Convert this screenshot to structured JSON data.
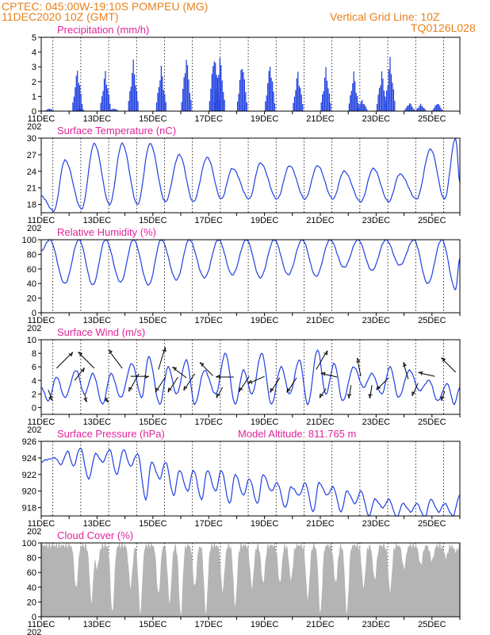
{
  "header": {
    "line1_left": "CPTEC:   045:00W-19:10S   POMPEU (MG)",
    "line2_left": "11DEC2020 10Z (GMT)",
    "line1_right": "Vertical Grid Line: 10Z",
    "line2_right": "TQ0126L028"
  },
  "colors": {
    "header": "#e8801c",
    "panel_title": "#e0249a",
    "series": "#2040e0",
    "cloud": "#b4b4b4"
  },
  "x_axis": {
    "tick_labels": [
      "11DEC",
      "13DEC",
      "15DEC",
      "17DEC",
      "19DEC",
      "21DEC",
      "23DEC",
      "25DEC"
    ],
    "year_fragment": "202",
    "day_range": [
      11,
      26
    ]
  },
  "chart_data": [
    {
      "type": "bar",
      "title": "Precipitation (mm/h)",
      "ylim": [
        0,
        5
      ],
      "yticks": [
        "0",
        "1",
        "2",
        "3",
        "4",
        "5"
      ],
      "x_unit": "day_of_december",
      "events": [
        {
          "day": 11.3,
          "peak": 0.2
        },
        {
          "day": 12.3,
          "peak": 3.0
        },
        {
          "day": 12.4,
          "peak": 0.2
        },
        {
          "day": 13.3,
          "peak": 2.8
        },
        {
          "day": 13.6,
          "peak": 0.2
        },
        {
          "day": 14.3,
          "peak": 3.5
        },
        {
          "day": 15.3,
          "peak": 3.1
        },
        {
          "day": 16.2,
          "peak": 3.9
        },
        {
          "day": 17.2,
          "peak": 4.2
        },
        {
          "day": 17.4,
          "peak": 3.9
        },
        {
          "day": 18.2,
          "peak": 3.6
        },
        {
          "day": 19.2,
          "peak": 3.4
        },
        {
          "day": 20.2,
          "peak": 2.8
        },
        {
          "day": 21.2,
          "peak": 3.0
        },
        {
          "day": 22.2,
          "peak": 2.7
        },
        {
          "day": 22.5,
          "peak": 0.8
        },
        {
          "day": 23.2,
          "peak": 2.8
        },
        {
          "day": 23.5,
          "peak": 3.7
        },
        {
          "day": 24.2,
          "peak": 0.6
        },
        {
          "day": 24.6,
          "peak": 0.5
        },
        {
          "day": 25.2,
          "peak": 0.6
        }
      ]
    },
    {
      "type": "line",
      "title": "Surface Temperature (nC)",
      "ylim": [
        16.5,
        30
      ],
      "yticks": [
        "18",
        "21",
        "24",
        "27",
        "30"
      ],
      "tick_values": [
        18,
        21,
        24,
        27,
        30
      ],
      "x_unit": "day_of_december",
      "extrema": [
        [
          11.0,
          19.5
        ],
        [
          11.45,
          16.8
        ],
        [
          11.85,
          26.0
        ],
        [
          12.45,
          17.2
        ],
        [
          12.9,
          29.0
        ],
        [
          13.45,
          18.0
        ],
        [
          13.9,
          29.0
        ],
        [
          14.45,
          18.0
        ],
        [
          14.9,
          29.0
        ],
        [
          15.45,
          18.5
        ],
        [
          15.95,
          27.0
        ],
        [
          16.45,
          18.5
        ],
        [
          16.95,
          26.5
        ],
        [
          17.45,
          19.0
        ],
        [
          17.85,
          24.5
        ],
        [
          18.45,
          19.0
        ],
        [
          18.85,
          25.5
        ],
        [
          19.45,
          19.0
        ],
        [
          19.9,
          25.0
        ],
        [
          20.45,
          19.0
        ],
        [
          20.9,
          25.0
        ],
        [
          21.45,
          19.0
        ],
        [
          21.85,
          24.0
        ],
        [
          22.45,
          18.5
        ],
        [
          22.9,
          24.5
        ],
        [
          23.45,
          18.5
        ],
        [
          23.85,
          23.5
        ],
        [
          24.45,
          19.0
        ],
        [
          24.95,
          28.0
        ],
        [
          25.45,
          19.0
        ],
        [
          25.85,
          30.0
        ],
        [
          26.0,
          22.0
        ]
      ]
    },
    {
      "type": "line",
      "title": "Relative Humidity (%)",
      "ylim": [
        0,
        100
      ],
      "yticks": [
        "0",
        "20",
        "40",
        "60",
        "80",
        "100"
      ],
      "tick_values": [
        0,
        20,
        40,
        60,
        80,
        100
      ],
      "x_unit": "day_of_december",
      "extrema": [
        [
          11.0,
          85
        ],
        [
          11.3,
          100
        ],
        [
          11.85,
          40
        ],
        [
          12.35,
          100
        ],
        [
          12.85,
          38
        ],
        [
          13.3,
          100
        ],
        [
          13.85,
          42
        ],
        [
          14.3,
          100
        ],
        [
          14.85,
          38
        ],
        [
          15.3,
          100
        ],
        [
          15.85,
          45
        ],
        [
          16.3,
          100
        ],
        [
          16.85,
          48
        ],
        [
          17.35,
          100
        ],
        [
          17.85,
          52
        ],
        [
          18.35,
          100
        ],
        [
          18.85,
          48
        ],
        [
          19.35,
          100
        ],
        [
          19.85,
          52
        ],
        [
          20.35,
          100
        ],
        [
          20.85,
          50
        ],
        [
          21.35,
          100
        ],
        [
          21.85,
          62
        ],
        [
          22.35,
          100
        ],
        [
          22.85,
          58
        ],
        [
          23.35,
          100
        ],
        [
          23.85,
          65
        ],
        [
          24.35,
          100
        ],
        [
          24.85,
          40
        ],
        [
          25.35,
          100
        ],
        [
          25.85,
          32
        ],
        [
          26.0,
          75
        ]
      ]
    },
    {
      "type": "line",
      "title": "Surface Wind (m/s)",
      "ylim": [
        -1,
        10
      ],
      "yticks": [
        "0",
        "2",
        "4",
        "6",
        "8",
        "10"
      ],
      "tick_values": [
        0,
        2,
        4,
        6,
        8,
        10
      ],
      "x_unit": "day_of_december",
      "extrema": [
        [
          11.0,
          3.0
        ],
        [
          11.25,
          1.0
        ],
        [
          11.55,
          4.5
        ],
        [
          11.85,
          1.5
        ],
        [
          12.25,
          5.5
        ],
        [
          12.55,
          2.0
        ],
        [
          12.85,
          5.0
        ],
        [
          13.2,
          0.5
        ],
        [
          13.5,
          5.0
        ],
        [
          13.85,
          1.5
        ],
        [
          14.25,
          6.5
        ],
        [
          14.6,
          1.5
        ],
        [
          14.85,
          7.5
        ],
        [
          15.25,
          0.5
        ],
        [
          15.55,
          6.0
        ],
        [
          15.85,
          2.0
        ],
        [
          16.2,
          7.0
        ],
        [
          16.5,
          0.5
        ],
        [
          16.85,
          5.5
        ],
        [
          17.25,
          2.0
        ],
        [
          17.6,
          8.0
        ],
        [
          17.95,
          0.5
        ],
        [
          18.25,
          5.5
        ],
        [
          18.55,
          2.0
        ],
        [
          18.9,
          8.0
        ],
        [
          19.25,
          0.5
        ],
        [
          19.6,
          6.0
        ],
        [
          19.9,
          2.0
        ],
        [
          20.25,
          7.0
        ],
        [
          20.55,
          0.5
        ],
        [
          20.9,
          8.5
        ],
        [
          21.2,
          2.0
        ],
        [
          21.5,
          6.5
        ],
        [
          21.8,
          1.0
        ],
        [
          22.2,
          6.0
        ],
        [
          22.55,
          3.0
        ],
        [
          22.85,
          5.0
        ],
        [
          23.2,
          2.0
        ],
        [
          23.5,
          6.0
        ],
        [
          23.8,
          1.5
        ],
        [
          24.2,
          5.5
        ],
        [
          24.55,
          2.5
        ],
        [
          24.9,
          4.0
        ],
        [
          25.2,
          1.0
        ],
        [
          25.55,
          3.5
        ],
        [
          25.8,
          0.5
        ],
        [
          26.0,
          3.0
        ]
      ],
      "wind_vectors": [
        {
          "day": 11.25,
          "speed": 2.6,
          "u": 0.4,
          "v": -1.0
        },
        {
          "day": 11.55,
          "speed": 5.8,
          "u": 0.7,
          "v": 0.7
        },
        {
          "day": 12.2,
          "speed": 4.0,
          "u": 0.6,
          "v": 0.8
        },
        {
          "day": 12.55,
          "speed": 2.0,
          "u": 0.3,
          "v": -1.0
        },
        {
          "day": 12.9,
          "speed": 5.8,
          "u": -0.7,
          "v": 0.7
        },
        {
          "day": 13.3,
          "speed": 1.5,
          "u": 0.5,
          "v": -0.8
        },
        {
          "day": 13.9,
          "speed": 5.8,
          "u": -0.6,
          "v": 0.8
        },
        {
          "day": 14.2,
          "speed": 4.6,
          "u": 1.0,
          "v": 0.0
        },
        {
          "day": 14.5,
          "speed": 5.0,
          "u": -0.5,
          "v": -0.9
        },
        {
          "day": 15.2,
          "speed": 5.6,
          "u": 0.3,
          "v": 1.0
        },
        {
          "day": 15.45,
          "speed": 4.5,
          "u": -0.55,
          "v": -0.85
        },
        {
          "day": 15.9,
          "speed": 4.5,
          "u": -0.55,
          "v": -0.85
        },
        {
          "day": 16.2,
          "speed": 4.4,
          "u": -0.8,
          "v": 0.6
        },
        {
          "day": 16.5,
          "speed": 5.0,
          "u": -0.55,
          "v": -0.85
        },
        {
          "day": 17.15,
          "speed": 4.7,
          "u": -0.7,
          "v": 0.7
        },
        {
          "day": 17.5,
          "speed": 3.0,
          "u": -0.5,
          "v": -0.9
        },
        {
          "day": 17.9,
          "speed": 4.5,
          "u": -1.0,
          "v": 0.0
        },
        {
          "day": 18.45,
          "speed": 4.6,
          "u": -0.55,
          "v": -0.85
        },
        {
          "day": 19.0,
          "speed": 4.6,
          "u": -0.9,
          "v": -0.4
        },
        {
          "day": 19.55,
          "speed": 4.4,
          "u": -0.55,
          "v": -0.85
        },
        {
          "day": 20.15,
          "speed": 4.4,
          "u": -0.55,
          "v": -0.85
        },
        {
          "day": 20.85,
          "speed": 5.6,
          "u": 0.5,
          "v": 0.85
        },
        {
          "day": 21.2,
          "speed": 2.8,
          "u": -0.55,
          "v": -0.85
        },
        {
          "day": 21.6,
          "speed": 4.5,
          "u": -0.9,
          "v": 0.2
        },
        {
          "day": 22.1,
          "speed": 3.3,
          "u": -0.15,
          "v": -1.0
        },
        {
          "day": 22.45,
          "speed": 4.6,
          "u": -0.2,
          "v": 1.0
        },
        {
          "day": 22.85,
          "speed": 3.3,
          "u": -0.15,
          "v": -1.0
        },
        {
          "day": 23.45,
          "speed": 4.4,
          "u": -0.7,
          "v": -0.7
        },
        {
          "day": 24.15,
          "speed": 4.2,
          "u": -0.3,
          "v": 1.0
        },
        {
          "day": 24.5,
          "speed": 3.6,
          "u": -0.4,
          "v": -0.9
        },
        {
          "day": 25.1,
          "speed": 4.6,
          "u": -0.9,
          "v": 0.2
        },
        {
          "day": 25.45,
          "speed": 2.4,
          "u": -0.3,
          "v": -1.0
        },
        {
          "day": 25.85,
          "speed": 5.2,
          "u": -0.7,
          "v": 0.7
        }
      ]
    },
    {
      "type": "line",
      "title": "Surface Pressure (hPa)",
      "annotation": "Model Altitude: 811.765 m",
      "ylim": [
        917,
        926
      ],
      "yticks": [
        "918",
        "920",
        "922",
        "924",
        "926"
      ],
      "tick_values": [
        918,
        920,
        922,
        924,
        926
      ],
      "x_unit": "day_of_december",
      "extrema": [
        [
          11.0,
          923.5
        ],
        [
          11.2,
          923.8
        ],
        [
          11.5,
          924.0
        ],
        [
          11.7,
          923.2
        ],
        [
          11.95,
          924.8
        ],
        [
          12.15,
          923.0
        ],
        [
          12.4,
          925.2
        ],
        [
          12.7,
          921.5
        ],
        [
          12.95,
          924.5
        ],
        [
          13.2,
          923.5
        ],
        [
          13.45,
          925.0
        ],
        [
          13.7,
          922.0
        ],
        [
          13.95,
          925.0
        ],
        [
          14.2,
          923.0
        ],
        [
          14.45,
          924.5
        ],
        [
          14.75,
          919.0
        ],
        [
          14.95,
          923.5
        ],
        [
          15.25,
          921.5
        ],
        [
          15.45,
          923.5
        ],
        [
          15.75,
          919.5
        ],
        [
          15.95,
          922.5
        ],
        [
          16.25,
          920.0
        ],
        [
          16.45,
          922.5
        ],
        [
          16.75,
          919.0
        ],
        [
          16.95,
          922.5
        ],
        [
          17.25,
          920.0
        ],
        [
          17.45,
          922.5
        ],
        [
          17.75,
          918.5
        ],
        [
          17.95,
          922.0
        ],
        [
          18.25,
          919.5
        ],
        [
          18.45,
          921.5
        ],
        [
          18.75,
          918.5
        ],
        [
          18.95,
          922.0
        ],
        [
          19.25,
          920.0
        ],
        [
          19.45,
          921.0
        ],
        [
          19.75,
          918.0
        ],
        [
          19.95,
          920.5
        ],
        [
          20.25,
          919.5
        ],
        [
          20.45,
          921.0
        ],
        [
          20.75,
          917.5
        ],
        [
          20.95,
          921.0
        ],
        [
          21.25,
          919.5
        ],
        [
          21.45,
          920.5
        ],
        [
          21.75,
          917.5
        ],
        [
          21.95,
          920.0
        ],
        [
          22.25,
          918.5
        ],
        [
          22.45,
          920.0
        ],
        [
          22.75,
          917.0
        ],
        [
          22.95,
          919.0
        ],
        [
          23.25,
          918.0
        ],
        [
          23.45,
          919.0
        ],
        [
          23.75,
          916.8
        ],
        [
          23.95,
          918.5
        ],
        [
          24.25,
          917.5
        ],
        [
          24.45,
          918.5
        ],
        [
          24.75,
          916.8
        ],
        [
          24.95,
          919.0
        ],
        [
          25.25,
          917.5
        ],
        [
          25.45,
          918.5
        ],
        [
          25.75,
          917.0
        ],
        [
          26.0,
          919.5
        ]
      ]
    },
    {
      "type": "area",
      "title": "Cloud Cover (%)",
      "ylim": [
        0,
        100
      ],
      "yticks": [
        "0",
        "20",
        "40",
        "60",
        "80",
        "100"
      ],
      "tick_values": [
        0,
        20,
        40,
        60,
        80,
        100
      ],
      "x_unit": "day_of_december",
      "baseline_percent": 96,
      "dips": [
        {
          "day": 12.25,
          "min": 38
        },
        {
          "day": 12.8,
          "min": 20
        },
        {
          "day": 13.0,
          "min": 65
        },
        {
          "day": 13.55,
          "min": 5
        },
        {
          "day": 14.2,
          "min": 40
        },
        {
          "day": 14.55,
          "min": 5
        },
        {
          "day": 15.2,
          "min": 30
        },
        {
          "day": 15.6,
          "min": 20
        },
        {
          "day": 16.0,
          "min": 2
        },
        {
          "day": 16.5,
          "min": 40
        },
        {
          "day": 16.9,
          "min": 5
        },
        {
          "day": 17.5,
          "min": 35
        },
        {
          "day": 17.95,
          "min": 15
        },
        {
          "day": 18.55,
          "min": 40
        },
        {
          "day": 18.95,
          "min": 45
        },
        {
          "day": 19.55,
          "min": 45
        },
        {
          "day": 19.95,
          "min": 50
        },
        {
          "day": 20.55,
          "min": 25
        },
        {
          "day": 21.0,
          "min": 5
        },
        {
          "day": 21.55,
          "min": 45
        },
        {
          "day": 21.95,
          "min": 5
        },
        {
          "day": 22.55,
          "min": 40
        },
        {
          "day": 22.95,
          "min": 50
        },
        {
          "day": 23.5,
          "min": 35
        },
        {
          "day": 24.0,
          "min": 65
        },
        {
          "day": 24.6,
          "min": 70
        },
        {
          "day": 25.0,
          "min": 75
        },
        {
          "day": 25.5,
          "min": 80
        },
        {
          "day": 25.85,
          "min": 88
        }
      ]
    }
  ]
}
